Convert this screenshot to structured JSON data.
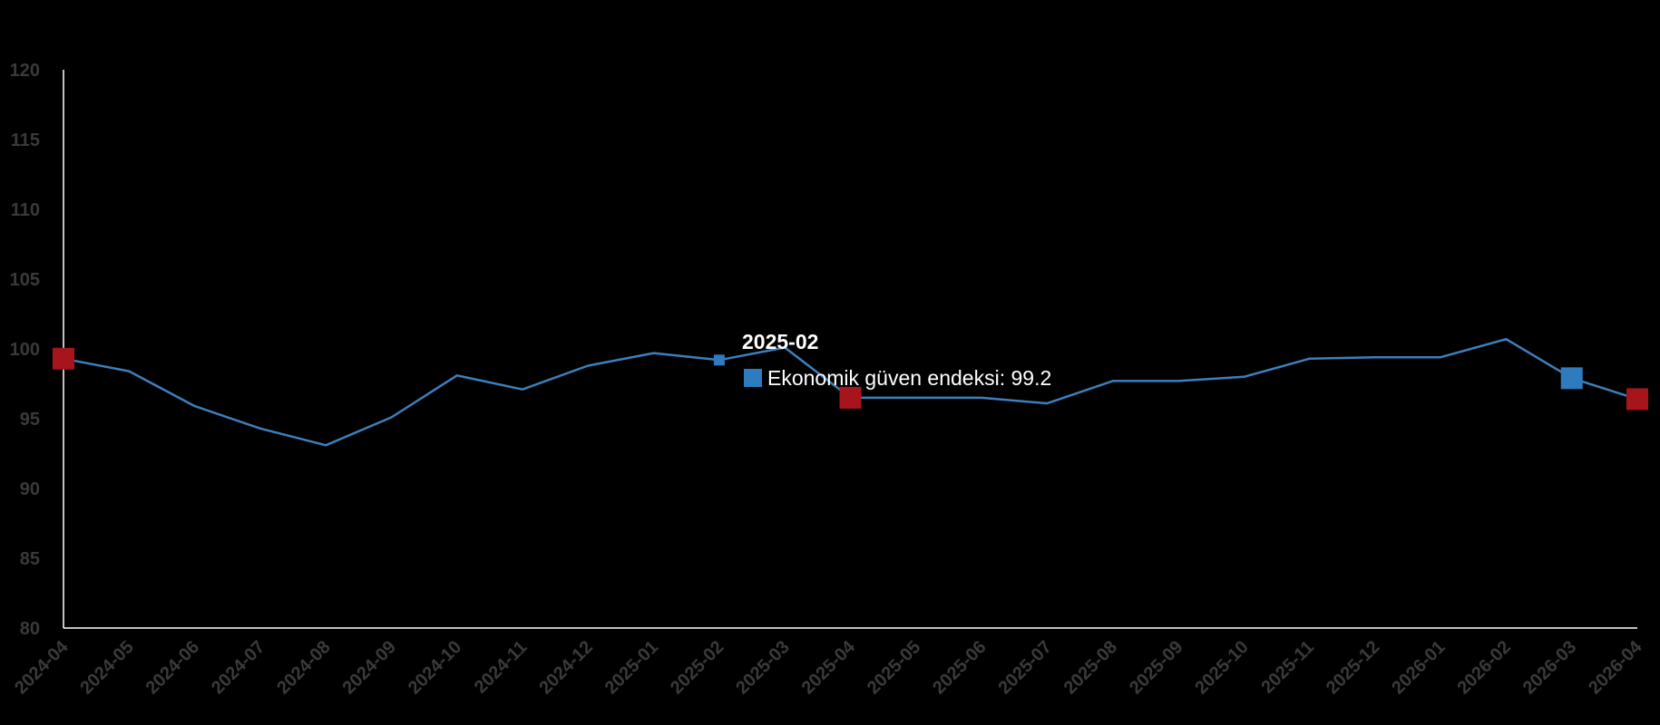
{
  "colors": {
    "background": "#000000",
    "line": "#3d7fbd",
    "axis": "#ffffff",
    "tick_text": "#3a3a3a",
    "marker_red": "#a6151c",
    "marker_blue": "#2f7bbf",
    "tooltip_marker": "#2f7bbf"
  },
  "chart_data": {
    "type": "line",
    "title": "",
    "xlabel": "",
    "ylabel": "",
    "ylim": [
      80,
      120
    ],
    "yticks": [
      80,
      85,
      90,
      95,
      100,
      105,
      110,
      115,
      120
    ],
    "grid": false,
    "categories": [
      "2024-04",
      "2024-05",
      "2024-06",
      "2024-07",
      "2024-08",
      "2024-09",
      "2024-10",
      "2024-11",
      "2024-12",
      "2025-01",
      "2025-02",
      "2025-03",
      "2025-04",
      "2025-05",
      "2025-06",
      "2025-07",
      "2025-08",
      "2025-09",
      "2025-10",
      "2025-11",
      "2025-12",
      "2026-01",
      "2026-02",
      "2026-03",
      "2026-04"
    ],
    "series": [
      {
        "name": "Ekonomik güven endeksi",
        "values": [
          99.3,
          98.4,
          95.9,
          94.3,
          93.1,
          95.1,
          98.1,
          97.1,
          98.8,
          99.7,
          99.2,
          100.1,
          96.5,
          96.5,
          96.5,
          96.1,
          97.7,
          97.7,
          98.0,
          99.3,
          99.4,
          99.4,
          100.7,
          97.9,
          96.4
        ]
      }
    ],
    "highlight_markers": [
      {
        "index": 0,
        "color": "red"
      },
      {
        "index": 12,
        "color": "red"
      },
      {
        "index": 23,
        "color": "blue"
      },
      {
        "index": 24,
        "color": "red"
      }
    ],
    "hover_index": 10
  },
  "tooltip": {
    "title": "2025-02",
    "series_label": "Ekonomik güven endeksi",
    "value_text": "99.2",
    "line": "Ekonomik güven endeksi: 99.2"
  }
}
